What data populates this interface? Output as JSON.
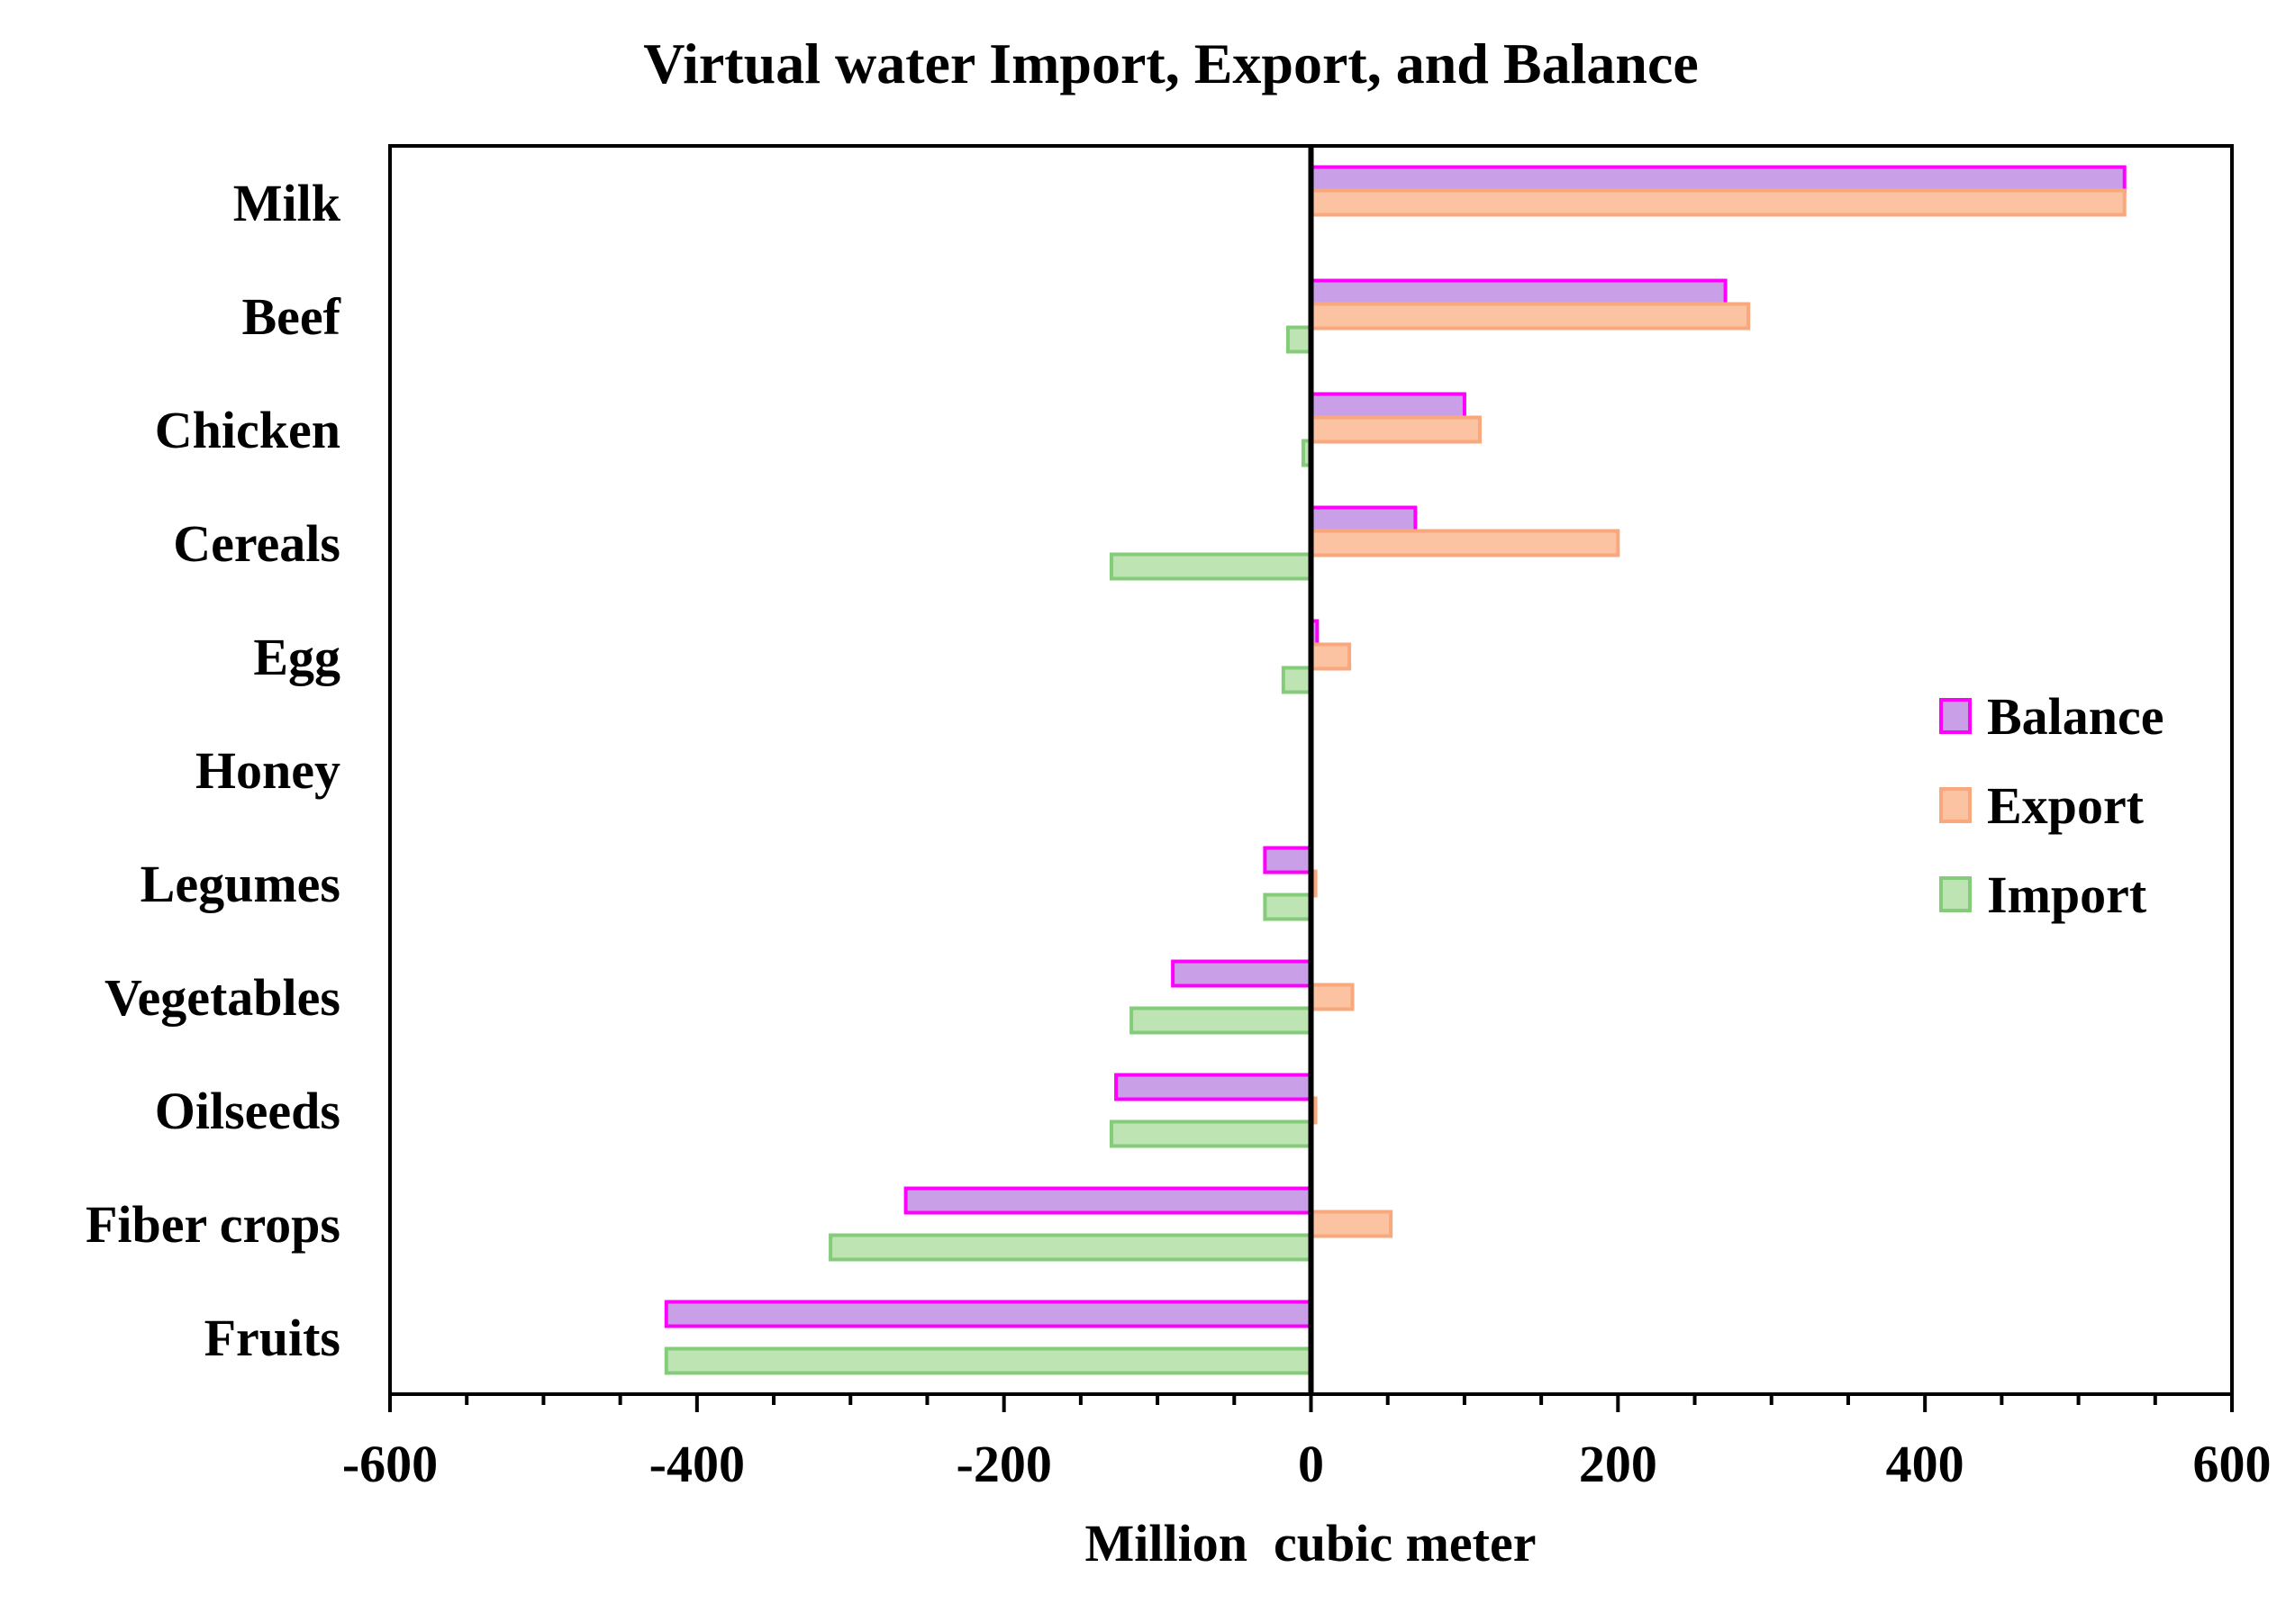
{
  "chart_data": {
    "type": "bar",
    "orientation": "horizontal",
    "title": "Virtual water Import, Export, and Balance",
    "xlabel": "Million  cubic meter",
    "ylabel": "",
    "xlim": [
      -600,
      600
    ],
    "xticks": [
      -600,
      -400,
      -200,
      0,
      200,
      400,
      600
    ],
    "tick_labels": [
      "-600",
      "-400",
      "-200",
      "0",
      "200",
      "400",
      "600"
    ],
    "minor_tick_step": 50,
    "grid": false,
    "legend_position": "right",
    "categories": [
      "Milk",
      "Beef",
      "Chicken",
      "Cereals",
      "Egg",
      "Honey",
      "Legumes",
      "Vegetables",
      "Oilseeds",
      "Fiber crops",
      "Fruits"
    ],
    "series": [
      {
        "name": "Balance",
        "fill": "#c9a0e8",
        "stroke": "#ff00ff",
        "values": [
          530,
          270,
          100,
          68,
          4,
          0,
          -30,
          -90,
          -127,
          -264,
          -420
        ]
      },
      {
        "name": "Export",
        "fill": "#fcc3a2",
        "stroke": "#f9a77c",
        "values": [
          530,
          285,
          110,
          200,
          25,
          0,
          3,
          27,
          3,
          52,
          0
        ]
      },
      {
        "name": "Import",
        "fill": "#bfe4b4",
        "stroke": "#84cc7a",
        "values": [
          0,
          -15,
          -5,
          -130,
          -18,
          0,
          -30,
          -117,
          -130,
          -313,
          -420
        ]
      }
    ]
  }
}
